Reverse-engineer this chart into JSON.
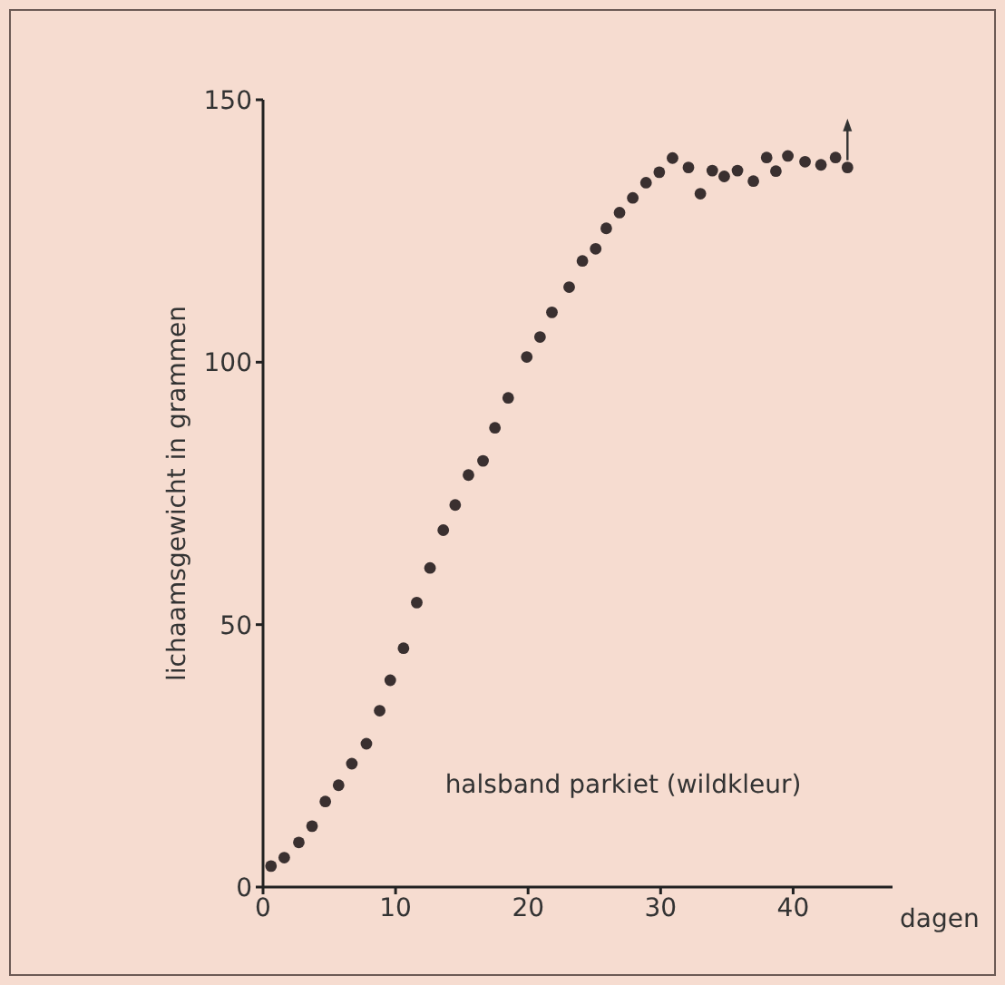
{
  "chart_data": {
    "type": "scatter",
    "xlabel": "dagen",
    "ylabel": "lichaamsgewicht in grammen",
    "annotations": [
      "halsband parkiet (wildkleur)"
    ],
    "x": [
      0.6,
      1.6,
      2.7,
      3.7,
      4.7,
      5.7,
      6.7,
      7.8,
      8.8,
      9.6,
      10.6,
      11.6,
      12.6,
      13.6,
      14.5,
      15.5,
      16.6,
      17.5,
      18.5,
      19.9,
      20.9,
      21.8,
      23.1,
      24.1,
      25.1,
      25.9,
      26.9,
      27.9,
      28.9,
      29.9,
      30.9,
      32.1,
      33,
      33.9,
      34.8,
      35.8,
      37,
      38,
      38.7,
      39.6,
      40.9,
      42.1,
      43.2,
      44.1
    ],
    "values": [
      4,
      5.6,
      8.5,
      11.6,
      16.3,
      19.4,
      23.5,
      27.3,
      33.6,
      39.4,
      45.5,
      54.2,
      60.8,
      68,
      72.8,
      78.5,
      81.2,
      87.5,
      93.2,
      101,
      104.8,
      109.5,
      114.3,
      119.3,
      121.6,
      125.5,
      128.5,
      131.3,
      134.2,
      136.2,
      138.9,
      137.1,
      132.1,
      136.5,
      135.4,
      136.5,
      134.5,
      139,
      136.4,
      139.3,
      138.2,
      137.6,
      139,
      137.1
    ],
    "color": "#3a3030",
    "marker": "circle",
    "xlim": [
      0,
      47.5
    ],
    "ylim": [
      0,
      150
    ],
    "xticks": [
      0,
      10,
      20,
      30,
      40
    ],
    "yticks": [
      0,
      50,
      100,
      150
    ],
    "grid": false,
    "legend": false
  }
}
